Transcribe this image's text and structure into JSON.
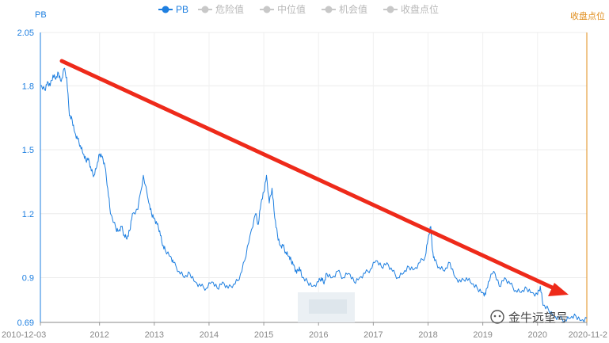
{
  "chart_data": {
    "type": "line",
    "title": "",
    "ylabel": "PB",
    "y2label": "收盘点位",
    "ylim": [
      0.69,
      2.05
    ],
    "yticks": [
      "2.05",
      "1.8",
      "1.5",
      "1.2",
      "0.9",
      "0.69"
    ],
    "xlim": [
      2010.92,
      2020.9
    ],
    "xticks": [
      {
        "x": 2010.92,
        "label": "2010-12-03"
      },
      {
        "x": 2012.0,
        "label": "2012"
      },
      {
        "x": 2013.0,
        "label": "2013"
      },
      {
        "x": 2014.0,
        "label": "2014"
      },
      {
        "x": 2015.0,
        "label": "2015"
      },
      {
        "x": 2016.0,
        "label": "2016"
      },
      {
        "x": 2017.0,
        "label": "2017"
      },
      {
        "x": 2018.0,
        "label": "2018"
      },
      {
        "x": 2019.0,
        "label": "2019"
      },
      {
        "x": 2020.0,
        "label": "2020"
      },
      {
        "x": 2020.9,
        "label": "2020-11-2"
      }
    ],
    "legend": [
      "PB",
      "危险值",
      "中位值",
      "机会值",
      "收盘点位"
    ],
    "legend_position": "top-center",
    "grid": true,
    "series": [
      {
        "name": "PB",
        "color": "#1e7fe0",
        "x": [
          2010.92,
          2011.0,
          2011.05,
          2011.1,
          2011.15,
          2011.2,
          2011.25,
          2011.3,
          2011.35,
          2011.4,
          2011.45,
          2011.5,
          2011.55,
          2011.6,
          2011.65,
          2011.7,
          2011.75,
          2011.8,
          2011.85,
          2011.9,
          2011.95,
          2012.0,
          2012.05,
          2012.1,
          2012.15,
          2012.2,
          2012.3,
          2012.35,
          2012.4,
          2012.45,
          2012.5,
          2012.55,
          2012.6,
          2012.7,
          2012.8,
          2012.9,
          2012.95,
          2013.0,
          2013.05,
          2013.1,
          2013.15,
          2013.2,
          2013.3,
          2013.35,
          2013.45,
          2013.55,
          2013.65,
          2013.75,
          2013.85,
          2013.95,
          2014.05,
          2014.15,
          2014.25,
          2014.35,
          2014.45,
          2014.55,
          2014.65,
          2014.75,
          2014.85,
          2014.9,
          2014.95,
          2015.0,
          2015.05,
          2015.1,
          2015.15,
          2015.2,
          2015.25,
          2015.3,
          2015.35,
          2015.4,
          2015.45,
          2015.5,
          2015.55,
          2015.6,
          2015.65,
          2015.7,
          2015.8,
          2015.9,
          2016.0,
          2016.05,
          2016.1,
          2016.15,
          2016.25,
          2016.35,
          2016.45,
          2016.55,
          2016.65,
          2016.75,
          2016.85,
          2016.95,
          2017.05,
          2017.15,
          2017.25,
          2017.35,
          2017.45,
          2017.55,
          2017.65,
          2017.75,
          2017.85,
          2017.95,
          2018.0,
          2018.05,
          2018.08,
          2018.12,
          2018.2,
          2018.3,
          2018.4,
          2018.5,
          2018.6,
          2018.7,
          2018.8,
          2018.9,
          2019.0,
          2019.05,
          2019.1,
          2019.2,
          2019.3,
          2019.4,
          2019.5,
          2019.6,
          2019.7,
          2019.8,
          2019.9,
          2020.0,
          2020.05,
          2020.1,
          2020.2,
          2020.3,
          2020.4,
          2020.5,
          2020.6,
          2020.7,
          2020.8,
          2020.9
        ],
        "y": [
          1.8,
          1.78,
          1.82,
          1.8,
          1.85,
          1.83,
          1.86,
          1.82,
          1.88,
          1.84,
          1.66,
          1.64,
          1.58,
          1.55,
          1.52,
          1.48,
          1.45,
          1.46,
          1.4,
          1.38,
          1.42,
          1.48,
          1.47,
          1.42,
          1.32,
          1.2,
          1.13,
          1.12,
          1.14,
          1.1,
          1.08,
          1.12,
          1.2,
          1.22,
          1.38,
          1.25,
          1.2,
          1.18,
          1.15,
          1.12,
          1.05,
          1.03,
          1.0,
          0.97,
          0.93,
          0.9,
          0.92,
          0.88,
          0.86,
          0.85,
          0.88,
          0.85,
          0.88,
          0.85,
          0.87,
          0.89,
          0.98,
          1.1,
          1.2,
          1.15,
          1.25,
          1.3,
          1.38,
          1.25,
          1.32,
          1.18,
          1.1,
          1.05,
          1.05,
          1.02,
          1.0,
          0.98,
          0.96,
          0.92,
          0.95,
          0.9,
          0.88,
          0.86,
          0.88,
          0.9,
          0.87,
          0.92,
          0.9,
          0.93,
          0.9,
          0.92,
          0.88,
          0.9,
          0.92,
          0.94,
          0.98,
          0.95,
          0.97,
          0.93,
          0.9,
          0.92,
          0.95,
          0.94,
          0.97,
          1.0,
          1.08,
          1.14,
          1.03,
          0.98,
          0.95,
          0.93,
          0.97,
          0.9,
          0.88,
          0.9,
          0.87,
          0.85,
          0.83,
          0.82,
          0.88,
          0.93,
          0.86,
          0.9,
          0.87,
          0.84,
          0.83,
          0.85,
          0.83,
          0.82,
          0.86,
          0.77,
          0.75,
          0.72,
          0.71,
          0.7,
          0.71,
          0.72,
          0.7,
          0.71
        ]
      }
    ],
    "watermark": "金牛远望号"
  }
}
